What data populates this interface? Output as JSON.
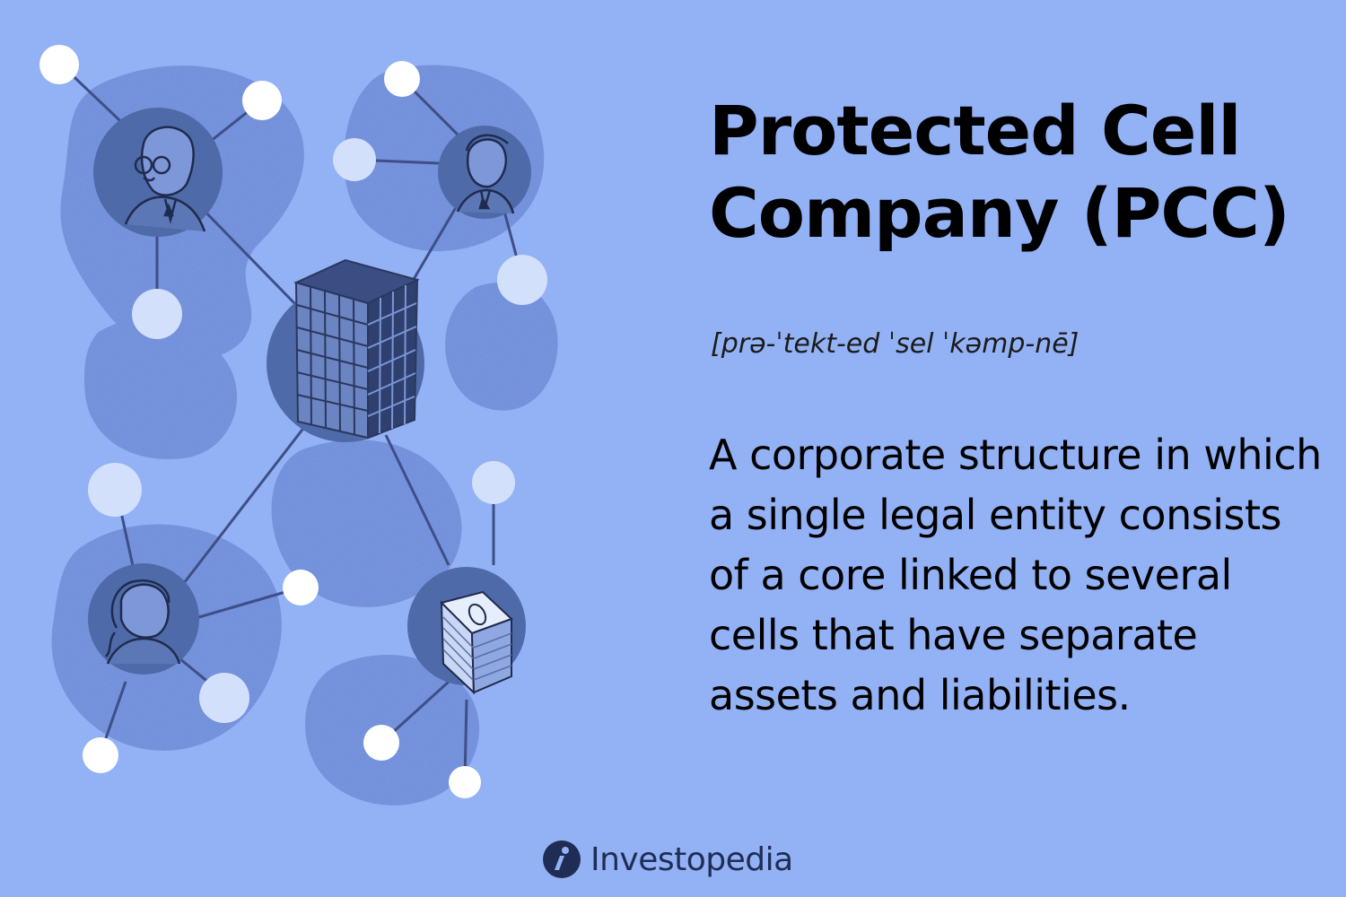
{
  "title": "Protected Cell Company (PCC)",
  "pronunciation": "[prə-ˈtekt-ed ˈsel ˈkəmp-nē]",
  "definition": "A corporate structure in which a single legal entity consists of a core linked to several cells that have separate assets and liabilities.",
  "brand": {
    "name": "Investopedia",
    "icon": "investopedia-logo-icon"
  },
  "colors": {
    "background": "#93b1f5",
    "blob": "#7b98de",
    "circle": "#4f6aa8",
    "line": "#3b4e84",
    "node": "#ffffff",
    "node_light": "#cfddfb"
  },
  "illustration": {
    "icons": [
      "office-building-icon",
      "older-man-with-glasses-icon",
      "young-man-icon",
      "woman-icon",
      "stack-of-money-icon"
    ]
  }
}
